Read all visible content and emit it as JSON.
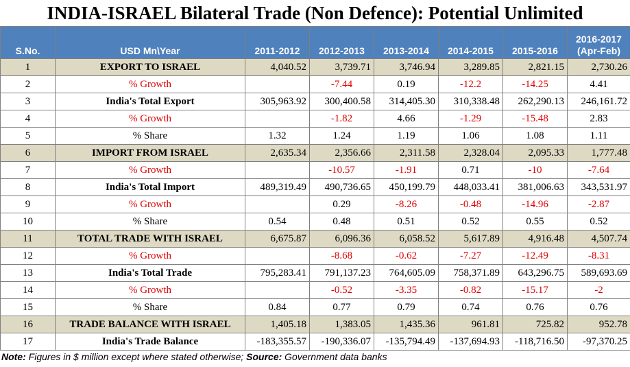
{
  "title": "INDIA-ISRAEL Bilateral Trade (Non Defence): Potential Unlimited",
  "headers": [
    "S.No.",
    "USD Mn\\Year",
    "2011-2012",
    "2012-2013",
    "2013-2014",
    "2014-2015",
    "2015-2016",
    "2016-2017 (Apr-Feb)"
  ],
  "header_last_line1": "2016-2017",
  "header_last_line2": "(Apr-Feb)",
  "rows": [
    {
      "sno": "1",
      "label": "EXPORT TO ISRAEL",
      "kind": "highlight",
      "values": [
        "4,040.52",
        "3,739.71",
        "3,746.94",
        "3,289.85",
        "2,821.15",
        "2,730.26"
      ]
    },
    {
      "sno": "2",
      "label": "% Growth",
      "kind": "growth",
      "values": [
        "",
        "-7.44",
        "0.19",
        "-12.2",
        "-14.25",
        "4.41"
      ]
    },
    {
      "sno": "3",
      "label": "India's Total Export",
      "kind": "bold",
      "values": [
        "305,963.92",
        "300,400.58",
        "314,405.30",
        "310,338.48",
        "262,290.13",
        "246,161.72"
      ]
    },
    {
      "sno": "4",
      "label": "% Growth",
      "kind": "growth",
      "values": [
        "",
        "-1.82",
        "4.66",
        "-1.29",
        "-15.48",
        "2.83"
      ]
    },
    {
      "sno": "5",
      "label": "% Share",
      "kind": "share",
      "values": [
        "1.32",
        "1.24",
        "1.19",
        "1.06",
        "1.08",
        "1.11"
      ]
    },
    {
      "sno": "6",
      "label": "IMPORT FROM ISRAEL",
      "kind": "highlight",
      "values": [
        "2,635.34",
        "2,356.66",
        "2,311.58",
        "2,328.04",
        "2,095.33",
        "1,777.48"
      ]
    },
    {
      "sno": "7",
      "label": "% Growth",
      "kind": "growth",
      "values": [
        "",
        "-10.57",
        "-1.91",
        "0.71",
        "-10",
        "-7.64"
      ]
    },
    {
      "sno": "8",
      "label": "India's Total Import",
      "kind": "bold",
      "values": [
        "489,319.49",
        "490,736.65",
        "450,199.79",
        "448,033.41",
        "381,006.63",
        "343,531.97"
      ]
    },
    {
      "sno": "9",
      "label": "% Growth",
      "kind": "growth",
      "values": [
        "",
        "0.29",
        "-8.26",
        "-0.48",
        "-14.96",
        "-2.87"
      ]
    },
    {
      "sno": "10",
      "label": "% Share",
      "kind": "share",
      "values": [
        "0.54",
        "0.48",
        "0.51",
        "0.52",
        "0.55",
        "0.52"
      ]
    },
    {
      "sno": "11",
      "label": "TOTAL TRADE WITH ISRAEL",
      "kind": "highlight",
      "values": [
        "6,675.87",
        "6,096.36",
        "6,058.52",
        "5,617.89",
        "4,916.48",
        "4,507.74"
      ]
    },
    {
      "sno": "12",
      "label": "% Growth",
      "kind": "growth",
      "values": [
        "",
        "-8.68",
        "-0.62",
        "-7.27",
        "-12.49",
        "-8.31"
      ]
    },
    {
      "sno": "13",
      "label": "India's Total Trade",
      "kind": "bold",
      "values": [
        "795,283.41",
        "791,137.23",
        "764,605.09",
        "758,371.89",
        "643,296.75",
        "589,693.69"
      ]
    },
    {
      "sno": "14",
      "label": "% Growth",
      "kind": "growth",
      "values": [
        "",
        "-0.52",
        "-3.35",
        "-0.82",
        "-15.17",
        "-2"
      ]
    },
    {
      "sno": "15",
      "label": "% Share",
      "kind": "share",
      "values": [
        "0.84",
        "0.77",
        "0.79",
        "0.74",
        "0.76",
        "0.76"
      ]
    },
    {
      "sno": "16",
      "label": "TRADE BALANCE WITH ISRAEL",
      "kind": "highlight",
      "values": [
        "1,405.18",
        "1,383.05",
        "1,435.36",
        "961.81",
        "725.82",
        "952.78"
      ]
    },
    {
      "sno": "17",
      "label": "India's Trade Balance",
      "kind": "bold",
      "values": [
        "-183,355.57",
        "-190,336.07",
        "-135,794.49",
        "-137,694.93",
        "-118,716.50",
        "-97,370.25"
      ]
    }
  ],
  "note": {
    "note_label": "Note:",
    "note_text": " Figures in $ million except where stated otherwise; ",
    "source_label": "Source:",
    "source_text": " Government data banks"
  },
  "colors": {
    "header_bg": "#4f81bd",
    "highlight_bg": "#ddd9c3",
    "negative_text": "#e00000"
  }
}
